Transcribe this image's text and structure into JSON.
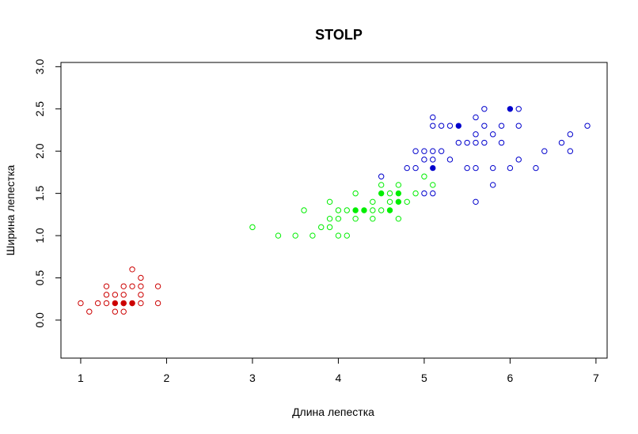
{
  "chart_data": {
    "type": "scatter",
    "title": "STOLP",
    "xlabel": "Длина лепестка",
    "ylabel": "Ширина лепестка",
    "xlim": [
      0.77,
      7.13
    ],
    "ylim": [
      -0.45,
      3.05
    ],
    "x_ticks": [
      1,
      2,
      3,
      4,
      5,
      6,
      7
    ],
    "y_ticks": [
      0.0,
      0.5,
      1.0,
      1.5,
      2.0,
      2.5,
      3.0
    ],
    "y_tick_labels": [
      "0.0",
      "0.5",
      "1.0",
      "1.5",
      "2.0",
      "2.5",
      "3.0"
    ],
    "grid": false,
    "series": [
      {
        "color": "#cc0000",
        "points": [
          [
            1.0,
            0.2
          ],
          [
            1.1,
            0.1
          ],
          [
            1.2,
            0.2
          ],
          [
            1.3,
            0.2
          ],
          [
            1.3,
            0.3
          ],
          [
            1.3,
            0.4
          ],
          [
            1.4,
            0.1
          ],
          [
            1.4,
            0.3
          ],
          [
            1.5,
            0.1
          ],
          [
            1.5,
            0.2
          ],
          [
            1.5,
            0.3
          ],
          [
            1.5,
            0.4
          ],
          [
            1.6,
            0.2
          ],
          [
            1.6,
            0.4
          ],
          [
            1.6,
            0.6
          ],
          [
            1.7,
            0.2
          ],
          [
            1.7,
            0.3
          ],
          [
            1.7,
            0.4
          ],
          [
            1.7,
            0.5
          ],
          [
            1.9,
            0.2
          ],
          [
            1.9,
            0.4
          ]
        ],
        "prototypes": [
          [
            1.4,
            0.2
          ],
          [
            1.5,
            0.2
          ],
          [
            1.6,
            0.2
          ]
        ]
      },
      {
        "color": "#00ee00",
        "points": [
          [
            3.0,
            1.1
          ],
          [
            3.3,
            1.0
          ],
          [
            3.5,
            1.0
          ],
          [
            3.6,
            1.3
          ],
          [
            3.7,
            1.0
          ],
          [
            3.8,
            1.1
          ],
          [
            3.9,
            1.1
          ],
          [
            3.9,
            1.2
          ],
          [
            3.9,
            1.4
          ],
          [
            4.0,
            1.0
          ],
          [
            4.0,
            1.2
          ],
          [
            4.0,
            1.3
          ],
          [
            4.1,
            1.0
          ],
          [
            4.1,
            1.3
          ],
          [
            4.2,
            1.2
          ],
          [
            4.2,
            1.5
          ],
          [
            4.4,
            1.2
          ],
          [
            4.4,
            1.3
          ],
          [
            4.4,
            1.4
          ],
          [
            4.5,
            1.3
          ],
          [
            4.5,
            1.6
          ],
          [
            4.6,
            1.4
          ],
          [
            4.6,
            1.5
          ],
          [
            4.7,
            1.2
          ],
          [
            4.7,
            1.6
          ],
          [
            4.8,
            1.4
          ],
          [
            4.9,
            1.5
          ],
          [
            5.0,
            1.7
          ],
          [
            5.1,
            1.6
          ]
        ],
        "prototypes": [
          [
            4.2,
            1.3
          ],
          [
            4.3,
            1.3
          ],
          [
            4.5,
            1.5
          ],
          [
            4.6,
            1.3
          ],
          [
            4.7,
            1.4
          ],
          [
            4.7,
            1.5
          ]
        ]
      },
      {
        "color": "#0000cc",
        "points": [
          [
            4.5,
            1.7
          ],
          [
            4.8,
            1.8
          ],
          [
            4.9,
            1.8
          ],
          [
            4.9,
            2.0
          ],
          [
            5.0,
            1.5
          ],
          [
            5.0,
            1.9
          ],
          [
            5.0,
            2.0
          ],
          [
            5.1,
            1.5
          ],
          [
            5.1,
            1.9
          ],
          [
            5.1,
            2.0
          ],
          [
            5.1,
            2.3
          ],
          [
            5.1,
            2.4
          ],
          [
            5.2,
            2.0
          ],
          [
            5.2,
            2.3
          ],
          [
            5.3,
            1.9
          ],
          [
            5.3,
            2.3
          ],
          [
            5.4,
            2.1
          ],
          [
            5.5,
            1.8
          ],
          [
            5.5,
            2.1
          ],
          [
            5.6,
            1.4
          ],
          [
            5.6,
            1.8
          ],
          [
            5.6,
            2.1
          ],
          [
            5.6,
            2.2
          ],
          [
            5.6,
            2.4
          ],
          [
            5.7,
            2.1
          ],
          [
            5.7,
            2.3
          ],
          [
            5.7,
            2.5
          ],
          [
            5.8,
            1.6
          ],
          [
            5.8,
            1.8
          ],
          [
            5.8,
            2.2
          ],
          [
            5.9,
            2.1
          ],
          [
            5.9,
            2.3
          ],
          [
            6.0,
            1.8
          ],
          [
            6.1,
            1.9
          ],
          [
            6.1,
            2.3
          ],
          [
            6.1,
            2.5
          ],
          [
            6.3,
            1.8
          ],
          [
            6.4,
            2.0
          ],
          [
            6.6,
            2.1
          ],
          [
            6.7,
            2.0
          ],
          [
            6.7,
            2.2
          ],
          [
            6.9,
            2.3
          ]
        ],
        "prototypes": [
          [
            5.1,
            1.8
          ],
          [
            5.4,
            2.3
          ],
          [
            6.0,
            2.5
          ]
        ]
      }
    ]
  }
}
